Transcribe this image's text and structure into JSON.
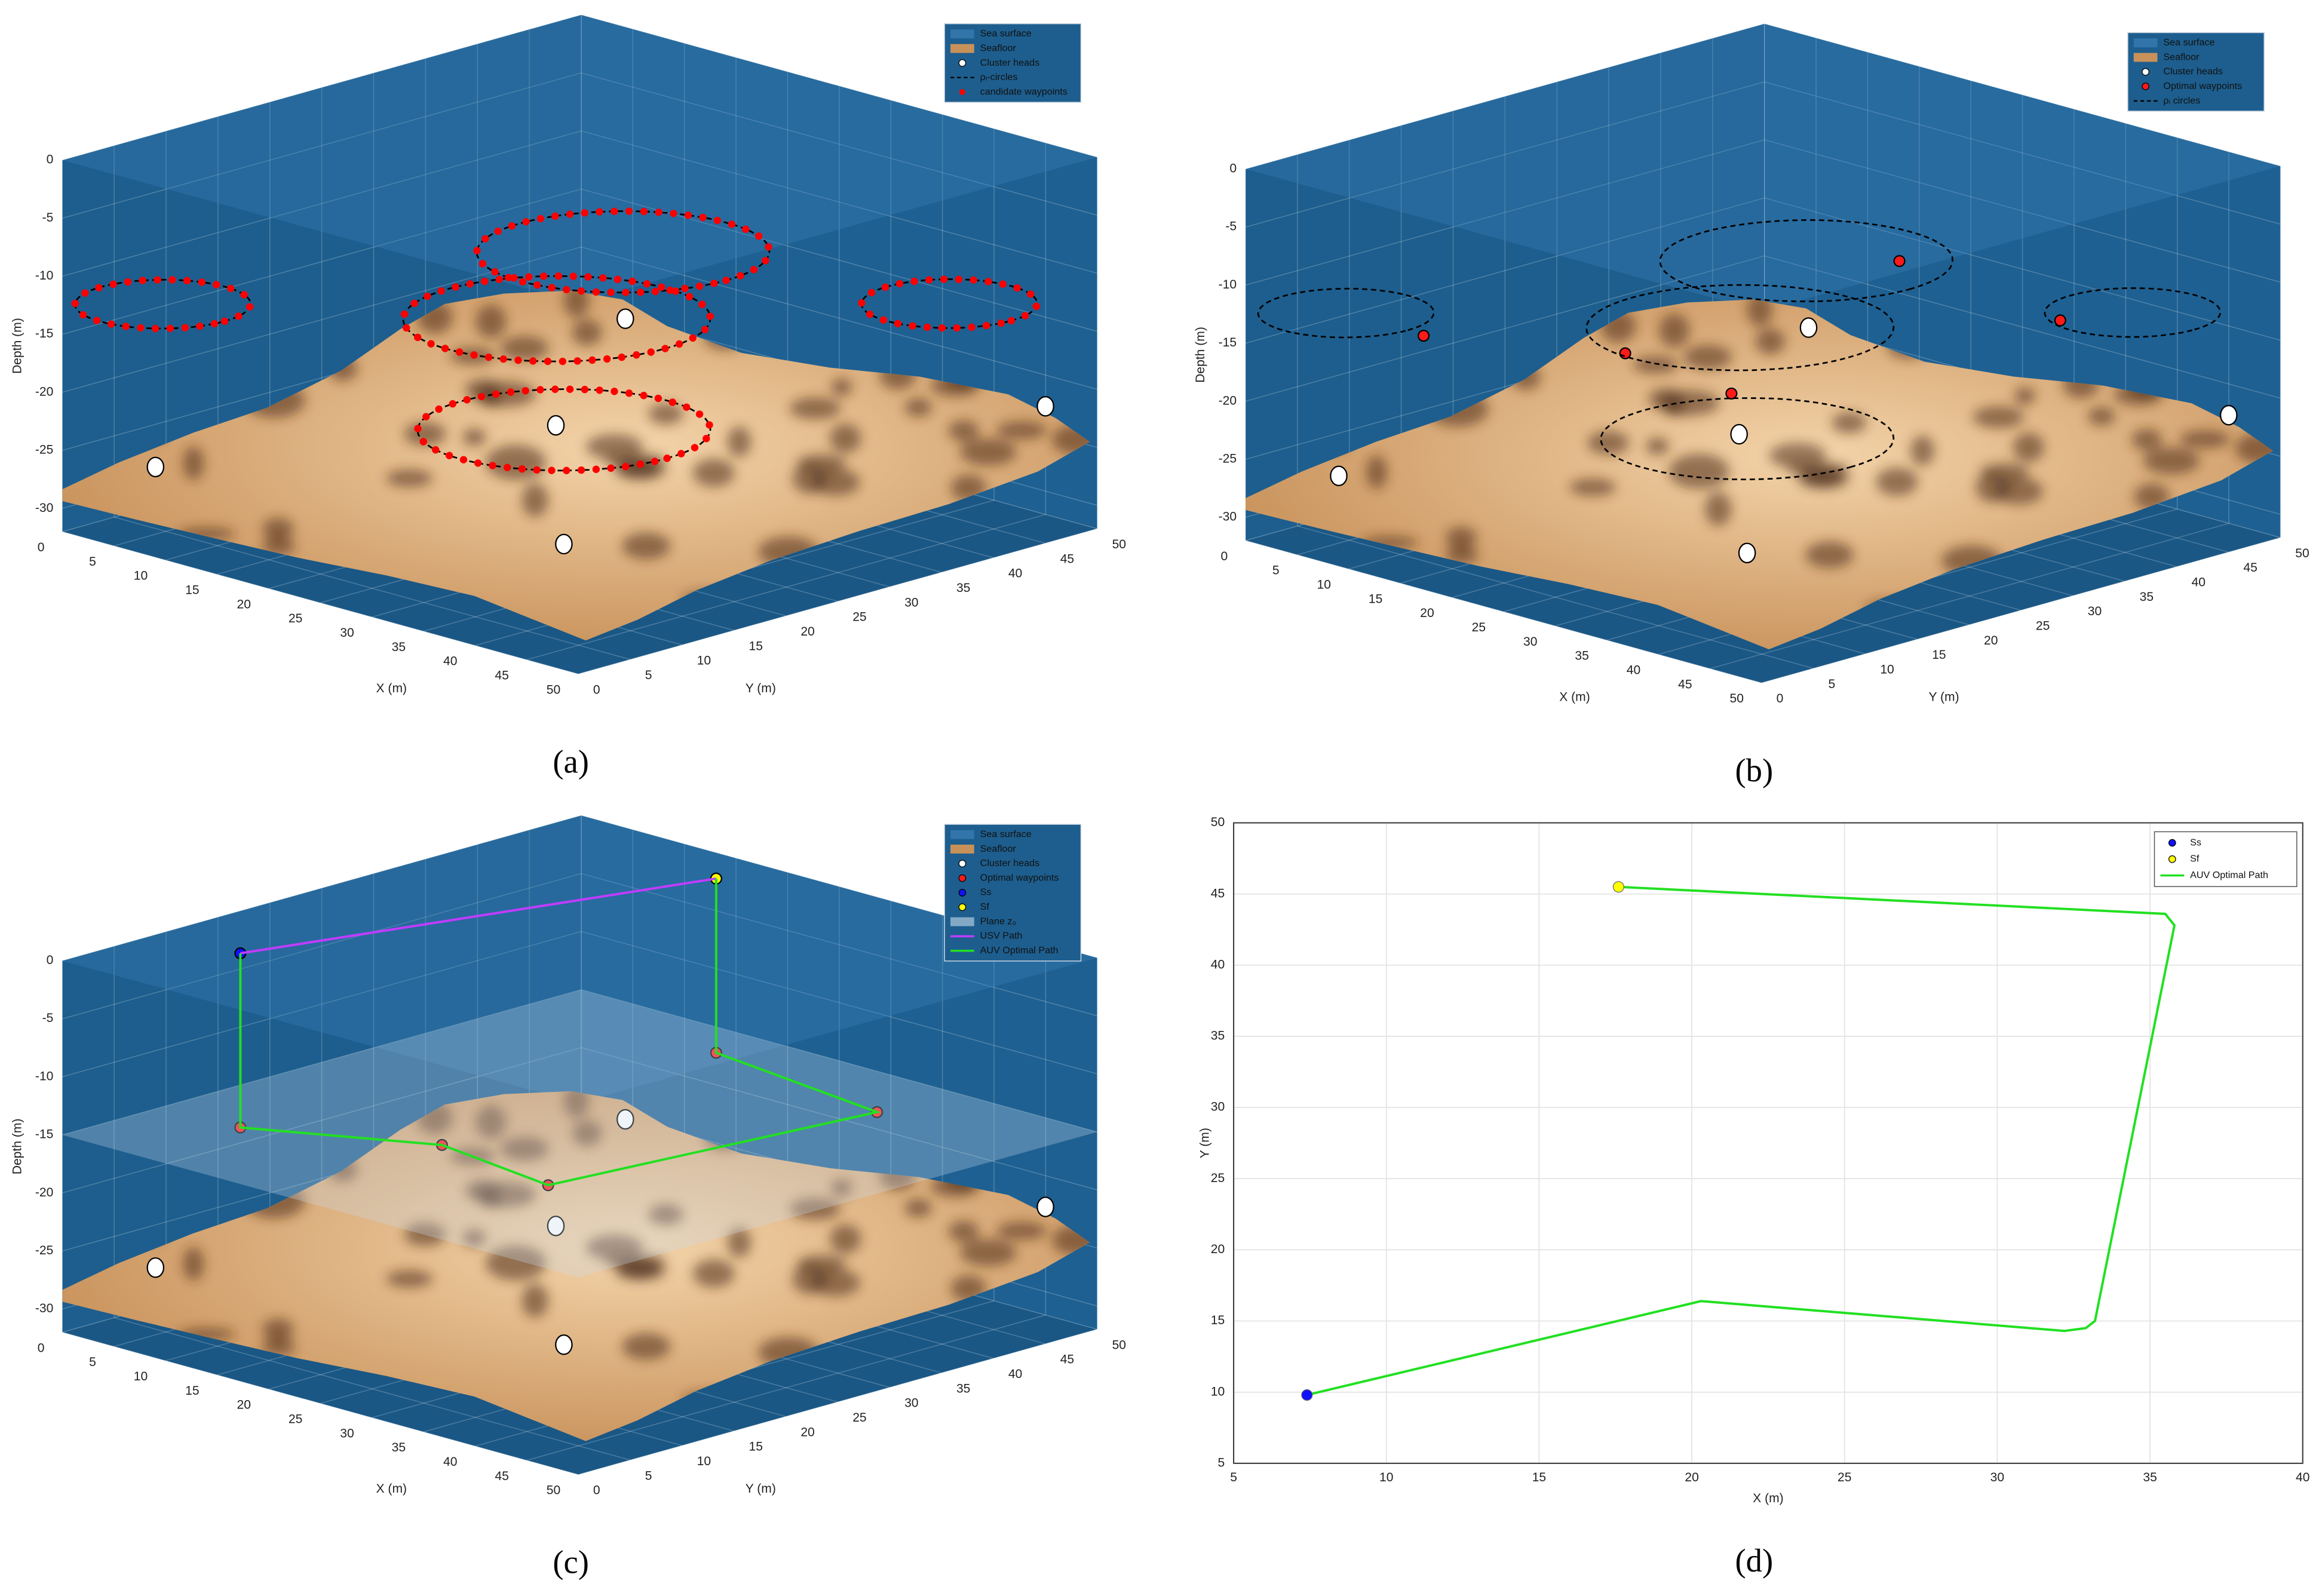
{
  "chart_data": [
    {
      "type": "surface3d",
      "label": "(a)",
      "xlabel": "X (m)",
      "ylabel": "Y (m)",
      "zlabel": "Depth (m)",
      "xlim": [
        0,
        50
      ],
      "ylim": [
        0,
        50
      ],
      "zlim": [
        -32,
        0
      ],
      "xticks": [
        0,
        5,
        10,
        15,
        20,
        25,
        30,
        35,
        40,
        45,
        50
      ],
      "yticks": [
        0,
        5,
        10,
        15,
        20,
        25,
        30,
        35,
        40,
        45,
        50
      ],
      "zticks": [
        -30,
        -25,
        -20,
        -15,
        -10,
        -5,
        0
      ],
      "grid": true,
      "legend_corner": "upper right",
      "series": [
        {
          "name": "Sea surface",
          "kind": "plane",
          "color": "#3f86bd",
          "z": 0
        },
        {
          "name": "Seafloor",
          "kind": "terrain",
          "color": "#c8915a"
        },
        {
          "name": "Cluster heads",
          "kind": "points",
          "color": "#ffffff",
          "x": [
            3.4,
            26.8,
            25.8,
            48.4,
            30.7
          ],
          "y": [
            5.6,
            27.6,
            21.9,
            46.6,
            17.8
          ],
          "z": [
            -27,
            -14,
            -22,
            -21,
            -30
          ]
        },
        {
          "name": "ρᵢ-circles",
          "kind": "circles",
          "color": "#000000",
          "x": [
            3.7,
            29.2,
            27.5,
            29.0,
            42.0
          ],
          "y": [
            6.0,
            25.0,
            20.3,
            19.5,
            43.7
          ],
          "z": [
            -13,
            -7,
            -12,
            -21,
            -13
          ],
          "r": [
            6,
            10,
            10.5,
            10,
            6
          ]
        },
        {
          "name": "candidate waypoints",
          "kind": "dotted-circles",
          "color": "#ff0000",
          "x": [
            3.7,
            29.2,
            27.5,
            29.0,
            42.0
          ],
          "y": [
            6.0,
            25.0,
            20.3,
            19.5,
            43.7
          ],
          "z": [
            -13,
            -7,
            -12,
            -21,
            -13
          ],
          "r": [
            6,
            10,
            10.5,
            10,
            6
          ]
        }
      ]
    },
    {
      "type": "surface3d",
      "label": "(b)",
      "xlabel": "X (m)",
      "ylabel": "Y (m)",
      "zlabel": "Depth (m)",
      "xlim": [
        0,
        50
      ],
      "ylim": [
        0,
        50
      ],
      "zlim": [
        -32,
        0
      ],
      "xticks": [
        0,
        5,
        10,
        15,
        20,
        25,
        30,
        35,
        40,
        45,
        50
      ],
      "yticks": [
        0,
        5,
        10,
        15,
        20,
        25,
        30,
        35,
        40,
        45,
        50
      ],
      "zticks": [
        -30,
        -25,
        -20,
        -15,
        -10,
        -5,
        0
      ],
      "grid": true,
      "legend_corner": "upper right",
      "series": [
        {
          "name": "Sea surface",
          "kind": "plane",
          "color": "#3f86bd",
          "z": 0
        },
        {
          "name": "Seafloor",
          "kind": "terrain",
          "color": "#c8915a"
        },
        {
          "name": "Cluster heads",
          "kind": "points",
          "color": "#ffffff",
          "x": [
            3.4,
            26.8,
            25.8,
            48.4,
            30.7
          ],
          "y": [
            5.6,
            27.6,
            21.9,
            46.6,
            17.8
          ],
          "z": [
            -27,
            -14,
            -22,
            -21,
            -30
          ]
        },
        {
          "name": "Optimal waypoints",
          "kind": "points",
          "color": "#ff1a1a",
          "x": [
            7.4,
            20.3,
            32.5,
            35.8,
            17.6
          ],
          "y": [
            9.8,
            16.4,
            14.5,
            42.9,
            45.5
          ],
          "z": [
            -15,
            -15,
            -15,
            -15,
            -15
          ]
        },
        {
          "name": "ρᵢ circles",
          "kind": "circles",
          "color": "#000000",
          "x": [
            3.7,
            29.2,
            27.5,
            29.0,
            42.0
          ],
          "y": [
            6.0,
            25.0,
            20.3,
            19.5,
            43.7
          ],
          "z": [
            -13,
            -7,
            -12,
            -21,
            -13
          ],
          "r": [
            6,
            10,
            10.5,
            10,
            6
          ]
        }
      ]
    },
    {
      "type": "surface3d",
      "label": "(c)",
      "xlabel": "X (m)",
      "ylabel": "Y (m)",
      "zlabel": "Depth (m)",
      "xlim": [
        0,
        50
      ],
      "ylim": [
        0,
        50
      ],
      "zlim": [
        -32,
        0
      ],
      "xticks": [
        0,
        5,
        10,
        15,
        20,
        25,
        30,
        35,
        40,
        45,
        50
      ],
      "yticks": [
        0,
        5,
        10,
        15,
        20,
        25,
        30,
        35,
        40,
        45,
        50
      ],
      "zticks": [
        -30,
        -25,
        -20,
        -15,
        -10,
        -5,
        0
      ],
      "grid": true,
      "legend_corner": "upper right",
      "series": [
        {
          "name": "Sea surface",
          "kind": "plane",
          "color": "#3f86bd",
          "z": 0
        },
        {
          "name": "Seafloor",
          "kind": "terrain",
          "color": "#c8915a"
        },
        {
          "name": "Cluster heads",
          "kind": "points",
          "color": "#ffffff",
          "x": [
            3.4,
            26.8,
            25.8,
            48.4,
            30.7
          ],
          "y": [
            5.6,
            27.6,
            21.9,
            46.6,
            17.8
          ],
          "z": [
            -27,
            -14,
            -22,
            -21,
            -30
          ]
        },
        {
          "name": "Optimal waypoints",
          "kind": "points",
          "color": "#ff1a1a",
          "x": [
            7.4,
            20.3,
            32.5,
            35.8,
            17.6
          ],
          "y": [
            9.8,
            16.4,
            14.5,
            42.9,
            45.5
          ],
          "z": [
            -15,
            -15,
            -15,
            -15,
            -15
          ]
        },
        {
          "name": "Ss",
          "kind": "points",
          "color": "#1010ff",
          "x": [
            7.4
          ],
          "y": [
            9.8
          ],
          "z": [
            0
          ]
        },
        {
          "name": "Sf",
          "kind": "points",
          "color": "#ffff00",
          "x": [
            17.6
          ],
          "y": [
            45.5
          ],
          "z": [
            0
          ]
        },
        {
          "name": "Plane z₀",
          "kind": "plane",
          "color": "#c9dcec",
          "z": -15
        },
        {
          "name": "USV Path",
          "kind": "line",
          "color": "#c03cff",
          "x": [
            7.4,
            17.6
          ],
          "y": [
            9.8,
            45.5
          ],
          "z": [
            0,
            0
          ]
        },
        {
          "name": "AUV Optimal Path",
          "kind": "line",
          "color": "#22e022",
          "x": [
            7.4,
            7.4,
            20.3,
            32.5,
            35.8,
            17.6,
            17.6
          ],
          "y": [
            9.8,
            9.8,
            16.4,
            14.5,
            42.9,
            45.5,
            45.5
          ],
          "z": [
            0,
            -15,
            -15,
            -15,
            -15,
            -15,
            0
          ]
        }
      ]
    },
    {
      "type": "line",
      "label": "(d)",
      "xlabel": "X (m)",
      "ylabel": "Y (m)",
      "xlim": [
        5,
        40
      ],
      "ylim": [
        5,
        50
      ],
      "xticks": [
        5,
        10,
        15,
        20,
        25,
        30,
        35,
        40
      ],
      "yticks": [
        5,
        10,
        15,
        20,
        25,
        30,
        35,
        40,
        45,
        50
      ],
      "grid": true,
      "legend_corner": "upper right",
      "series": [
        {
          "name": "Ss",
          "kind": "points",
          "color": "#1010ff",
          "x": [
            7.4
          ],
          "y": [
            9.8
          ]
        },
        {
          "name": "Sf",
          "kind": "points",
          "color": "#ffff00",
          "x": [
            17.6
          ],
          "y": [
            45.5
          ]
        },
        {
          "name": "AUV Optimal Path",
          "kind": "line",
          "color": "#22e022",
          "x": [
            7.4,
            20.3,
            32.2,
            32.9,
            33.2,
            35.8,
            35.5,
            17.6
          ],
          "y": [
            9.8,
            16.4,
            14.3,
            14.5,
            15.0,
            42.8,
            43.6,
            45.5
          ]
        }
      ]
    }
  ]
}
